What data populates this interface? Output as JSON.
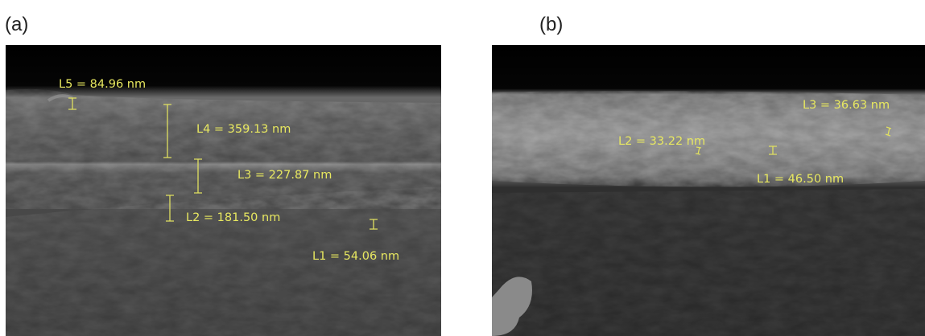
{
  "panels": [
    {
      "label": "(a)",
      "measurements": [
        "L5 = 84.96 nm",
        "L4 = 359.13 nm",
        "L3 = 227.87 nm",
        "L2 = 181.50 nm",
        "L1 = 54.06 nm"
      ]
    },
    {
      "label": "(b)",
      "measurements": [
        "L3 = 36.63 nm",
        "L2 = 33.22 nm",
        "L1 = 46.50 nm"
      ]
    }
  ]
}
